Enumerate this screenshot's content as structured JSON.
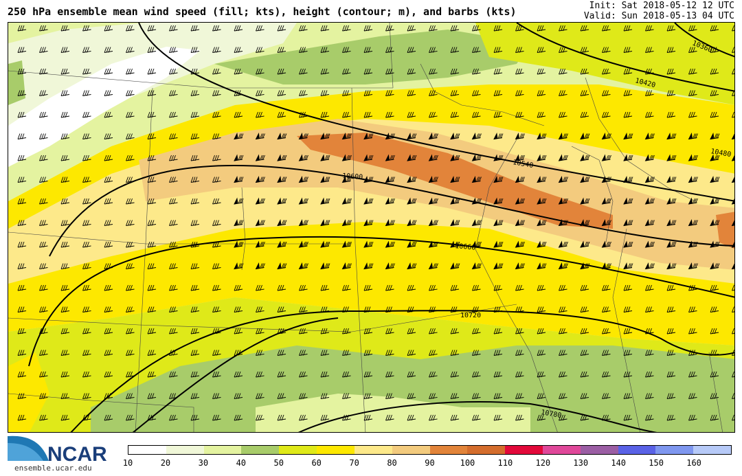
{
  "header": {
    "title": "250 hPa ensemble mean wind speed (fill; kts), height (contour; m), and barbs (kts)",
    "init_line": "Init: Sat 2018-05-12 12 UTC",
    "valid_line": "Valid: Sun 2018-05-13 04 UTC"
  },
  "logo": {
    "text": "NCAR",
    "url": "ensemble.ucar.edu"
  },
  "colorbar": {
    "ticks": [
      "10",
      "20",
      "30",
      "40",
      "50",
      "60",
      "70",
      "80",
      "90",
      "100",
      "110",
      "120",
      "130",
      "140",
      "150",
      "160"
    ],
    "colors": [
      "#ffffff",
      "#f0f7d8",
      "#e4f3a0",
      "#a8cc6a",
      "#dfe919",
      "#fde800",
      "#fde98a",
      "#f3cb7e",
      "#e2843a",
      "#d46d2d",
      "#e2093a",
      "#e0489a",
      "#9b5ea4",
      "#5a62e6",
      "#7f97ef",
      "#b7caf8"
    ]
  },
  "map": {
    "contour_labels": [
      "10360",
      "10420",
      "10480",
      "10540",
      "10600",
      "10660",
      "10720",
      "10780"
    ]
  }
}
